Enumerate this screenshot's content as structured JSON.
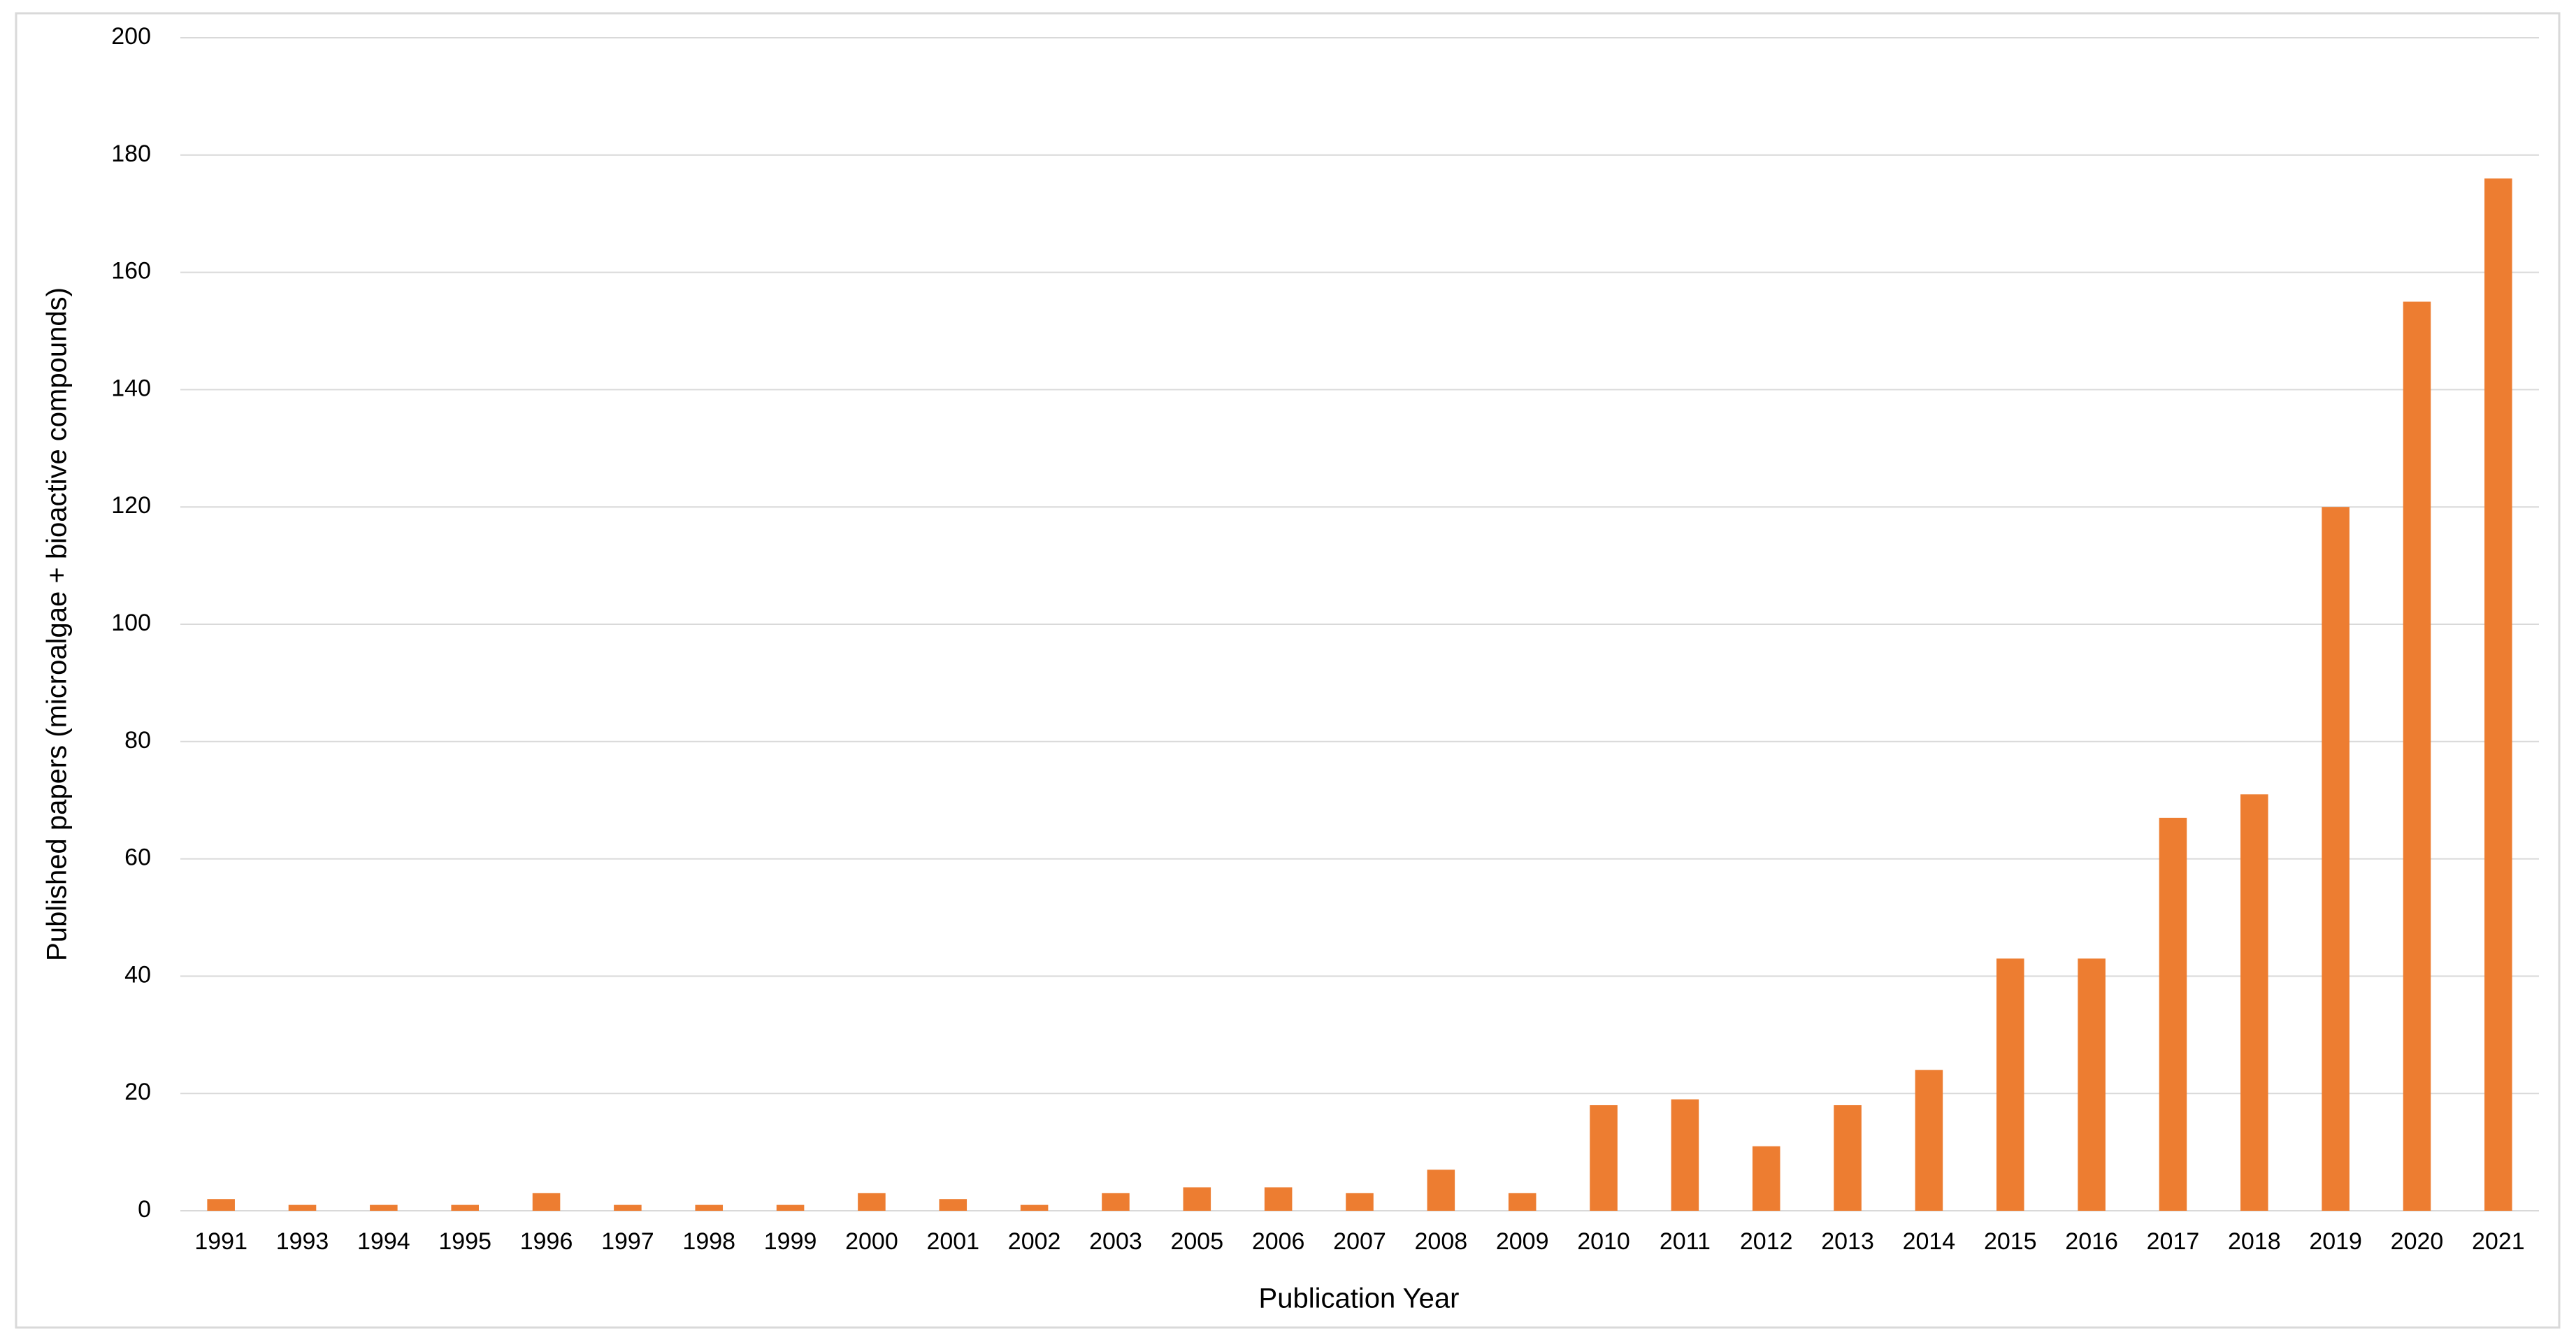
{
  "chart_data": {
    "type": "bar",
    "x_label": "Publication Year",
    "y_label": "Published papers (microalgae + bioactive compounds)",
    "categories": [
      "1991",
      "1993",
      "1994",
      "1995",
      "1996",
      "1997",
      "1998",
      "1999",
      "2000",
      "2001",
      "2002",
      "2003",
      "2005",
      "2006",
      "2007",
      "2008",
      "2009",
      "2010",
      "2011",
      "2012",
      "2013",
      "2014",
      "2015",
      "2016",
      "2017",
      "2018",
      "2019",
      "2020",
      "2021"
    ],
    "values": [
      2,
      1,
      1,
      1,
      3,
      1,
      1,
      1,
      3,
      2,
      1,
      3,
      4,
      4,
      3,
      7,
      3,
      18,
      19,
      11,
      18,
      24,
      43,
      43,
      67,
      71,
      120,
      155,
      176
    ],
    "color": "#ed7d31",
    "ylim": [
      0,
      200
    ],
    "yticks": [
      0,
      20,
      40,
      60,
      80,
      100,
      120,
      140,
      160,
      180,
      200
    ],
    "grid": true
  }
}
